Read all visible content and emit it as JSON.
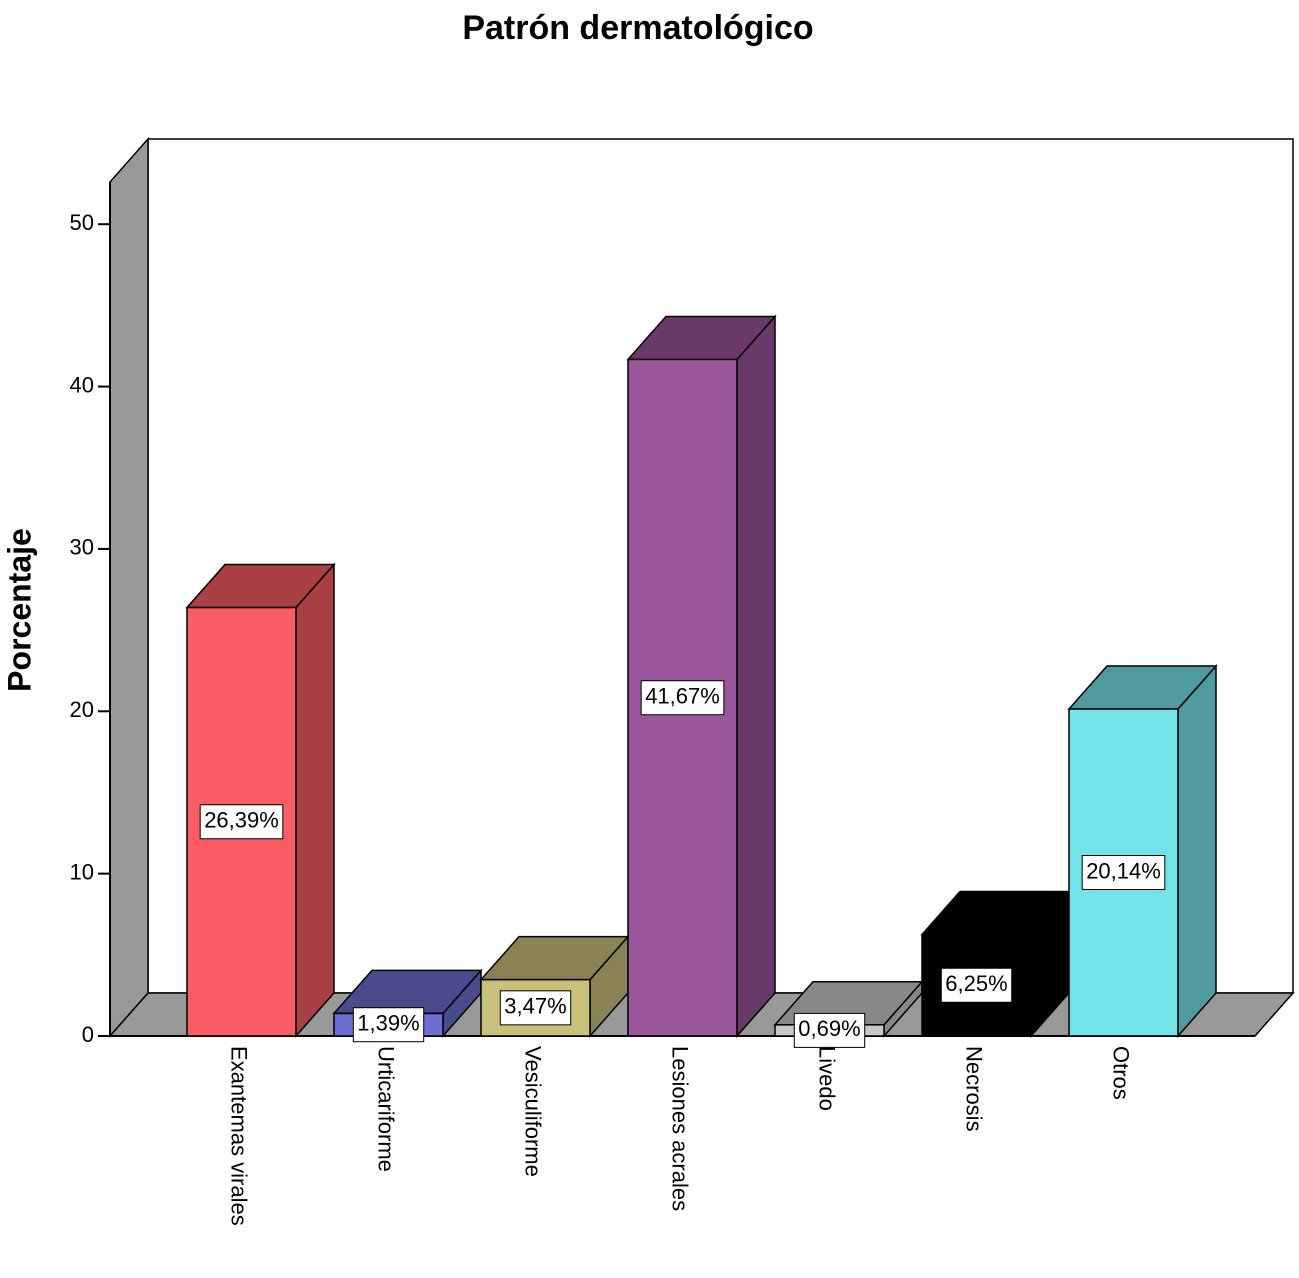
{
  "chart_data": {
    "type": "bar3d",
    "title": "Patrón dermatológico",
    "y_label": "Porcentaje",
    "categories": [
      "Exantemas virales",
      "Urticariforme",
      "Vesiculiforme",
      "Lesiones acrales",
      "Livedo",
      "Necrosis",
      "Otros"
    ],
    "values": [
      26.39,
      1.39,
      3.47,
      41.67,
      0.69,
      6.25,
      20.14
    ],
    "value_labels": [
      "26,39%",
      "1,39%",
      "3,47%",
      "41,67%",
      "0,69%",
      "6,25%",
      "20,14%"
    ],
    "colors": [
      "#f85e63",
      "#6b6fcf",
      "#c9c07a",
      "#9a569a",
      "#c8c8c8",
      "#000000",
      "#73e3ea"
    ],
    "ylim": [
      0,
      52.6
    ],
    "yticks": [
      0,
      10,
      20,
      30,
      40,
      50
    ]
  }
}
